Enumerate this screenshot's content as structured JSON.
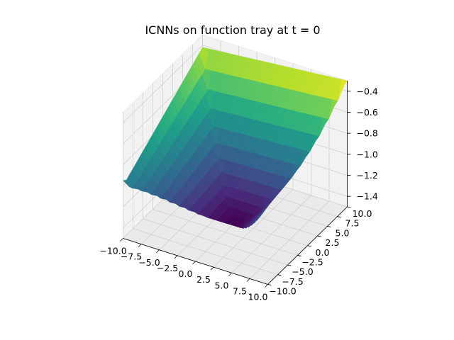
{
  "chart_data": {
    "type": "surface",
    "title": "ICNNs on function tray at t = 0",
    "xlabel": "",
    "ylabel": "",
    "zlabel": "",
    "colormap": "viridis",
    "grid": true,
    "x_range": [
      -10,
      10
    ],
    "y_range": [
      -10,
      10
    ],
    "z_range": [
      -1.5,
      -0.3
    ],
    "x_ticks": [
      "−10.0",
      "−7.5",
      "−5.0",
      "−2.5",
      "0.0",
      "2.5",
      "5.0",
      "7.5",
      "10.0"
    ],
    "y_ticks": [
      "−10.0",
      "−7.5",
      "−5.0",
      "−2.5",
      "0.0",
      "2.5",
      "5.0",
      "7.5",
      "10.0"
    ],
    "z_ticks": [
      "−1.4",
      "−1.2",
      "−1.0",
      "−0.8",
      "−0.6",
      "−0.4"
    ],
    "x_tick_values": [
      -10,
      -7.5,
      -5,
      -2.5,
      0,
      2.5,
      5,
      7.5,
      10
    ],
    "y_tick_values": [
      -10,
      -7.5,
      -5,
      -2.5,
      0,
      2.5,
      5,
      7.5,
      10
    ],
    "z_tick_values": [
      -1.4,
      -1.2,
      -1.0,
      -0.8,
      -0.6,
      -0.4
    ],
    "corner_values": [
      {
        "x": -10,
        "y": -10,
        "z": -1.0
      },
      {
        "x": 10,
        "y": -10,
        "z": -0.75
      },
      {
        "x": -10,
        "y": 10,
        "z": -0.42
      },
      {
        "x": 10,
        "y": 10,
        "z": -0.3
      }
    ],
    "minimum": {
      "x": 0,
      "y": 0,
      "z": -1.5
    }
  }
}
